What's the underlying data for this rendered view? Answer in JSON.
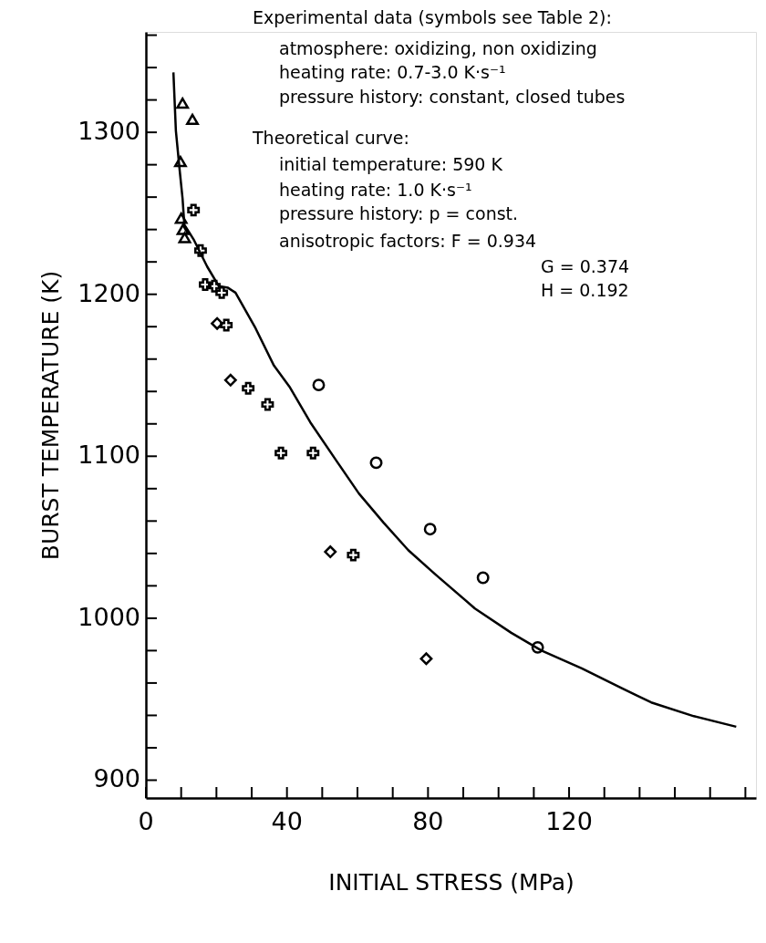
{
  "chart_data": {
    "type": "scatter",
    "xlabel": "INITIAL STRESS (MPa)",
    "ylabel": "BURST TEMPERATURE (K)",
    "xlim": [
      0,
      173
    ],
    "ylim": [
      889,
      1362
    ],
    "xticks": [
      0,
      {
        "value": 10,
        "label": null
      },
      {
        "value": 20,
        "label": null
      },
      {
        "value": 30,
        "label": null
      },
      40,
      {
        "value": 50,
        "label": null
      },
      {
        "value": 60,
        "label": null
      },
      {
        "value": 70,
        "label": null
      },
      80,
      {
        "value": 90,
        "label": null
      },
      {
        "value": 100,
        "label": null
      },
      {
        "value": 110,
        "label": null
      },
      120,
      {
        "value": 130,
        "label": null
      },
      {
        "value": 140,
        "label": null
      },
      {
        "value": 150,
        "label": null
      },
      {
        "value": 160,
        "label": null
      },
      {
        "value": 170,
        "label": null
      }
    ],
    "yticks": [
      900,
      {
        "value": 920,
        "label": null
      },
      {
        "value": 940,
        "label": null
      },
      {
        "value": 960,
        "label": null
      },
      {
        "value": 980,
        "label": null
      },
      1000,
      {
        "value": 1020,
        "label": null
      },
      {
        "value": 1040,
        "label": null
      },
      {
        "value": 1060,
        "label": null
      },
      {
        "value": 1080,
        "label": null
      },
      1100,
      {
        "value": 1120,
        "label": null
      },
      {
        "value": 1140,
        "label": null
      },
      {
        "value": 1160,
        "label": null
      },
      {
        "value": 1180,
        "label": null
      },
      1200,
      {
        "value": 1220,
        "label": null
      },
      {
        "value": 1240,
        "label": null
      },
      {
        "value": 1260,
        "label": null
      },
      {
        "value": 1280,
        "label": null
      },
      1300,
      {
        "value": 1320,
        "label": null
      },
      {
        "value": 1340,
        "label": null
      },
      {
        "value": 1360,
        "label": null
      }
    ],
    "grid": false,
    "series": [
      {
        "type": "line",
        "color": "#000000",
        "marker": "none",
        "line_style": "solid",
        "x": [
          7.8,
          8.5,
          9.6,
          10.4,
          10.9,
          13.5,
          17.4,
          20.7,
          23.3,
          25.4,
          31.1,
          36.3,
          40.7,
          46.6,
          54.4,
          60.4,
          67.4,
          74.4,
          82.1,
          93.3,
          103.6,
          112.2,
          123.6,
          134.7,
          143.3,
          155.4,
          167.4
        ],
        "values": [
          1337,
          1301,
          1276,
          1259,
          1243,
          1234,
          1217,
          1205,
          1204,
          1201,
          1179,
          1156,
          1143,
          1121,
          1096,
          1077,
          1059,
          1042,
          1027,
          1006,
          991,
          980,
          969,
          957,
          948,
          939.5,
          933
        ]
      },
      {
        "color": "#000000",
        "marker": "triangle",
        "x": [
          10.4,
          13.2,
          9.8,
          10,
          10.5,
          11
        ],
        "values": [
          1318,
          1308,
          1282,
          1247,
          1240,
          1235
        ]
      },
      {
        "color": "#000000",
        "marker": "cross",
        "x": [
          13.5,
          15.5,
          16.8,
          19.4,
          21.5,
          22.8,
          29,
          34.5,
          38.3,
          47.4,
          58.8
        ],
        "values": [
          1252,
          1227,
          1206,
          1205,
          1201,
          1181,
          1142,
          1132,
          1102,
          1102,
          1039
        ]
      },
      {
        "color": "#000000",
        "marker": "diamond",
        "x": [
          20.2,
          24,
          52.3,
          79.5
        ],
        "values": [
          1182,
          1147,
          1041,
          975
        ]
      },
      {
        "color": "#000000",
        "marker": "circle",
        "x": [
          49,
          65.3,
          80.6,
          95.6,
          111.1
        ],
        "values": [
          1144,
          1096,
          1055,
          1025,
          982
        ]
      }
    ],
    "annotations": [
      "Experimental data (symbols see Table 2):",
      "atmosphere: oxidizing, non oxidizing",
      "heating rate: 0.7-3.0 K·s⁻¹",
      "pressure history: constant, closed tubes",
      "Theoretical curve:",
      "initial temperature: 590 K",
      "heating rate: 1.0 K·s⁻¹",
      "pressure history: p = const.",
      "anisotropic factors: F = 0.934",
      "G = 0.374",
      "H = 0.192"
    ]
  }
}
